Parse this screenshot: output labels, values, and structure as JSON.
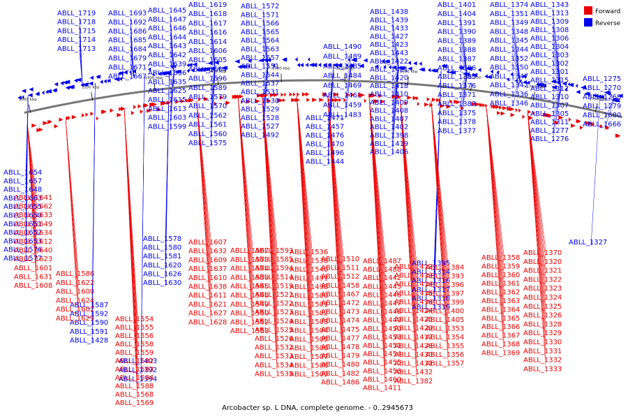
{
  "caption": "Arcobacter sp. L DNA, complete genome. - 0..2945673",
  "legend": [
    {
      "label": "Forward",
      "color": "#ee0000"
    },
    {
      "label": "Reverse",
      "color": "#0000ee"
    }
  ],
  "colors": {
    "forward": "#ee0000",
    "reverse": "#0000ee",
    "backbone": "#777777"
  },
  "ticks": [
    "1750 kbp",
    "1700 kbp",
    "1650 kbp",
    "1600 kbp",
    "1550 kbp",
    "1500 kbp",
    "1450 kbp",
    "1400 kbp",
    "1350 kbp",
    "1300 kbp"
  ],
  "labels_reverse": [
    "ABLL_1719",
    "ABLL_1718",
    "ABLL_1715",
    "ABLL_1714",
    "ABLL_1713",
    "ABLL_1693",
    "ABLL_1692",
    "ABLL_1686",
    "ABLL_1685",
    "ABLL_1684",
    "ABLL_1679",
    "ABLL_1671",
    "ABLL_1667",
    "ABLL_1645",
    "ABLL_1647",
    "ABLL_1646",
    "ABLL_1644",
    "ABLL_1643",
    "ABLL_1642",
    "ABLL_1639",
    "ABLL_1636",
    "ABLL_1635",
    "ABLL_1625",
    "ABLL_1615",
    "ABLL_1613",
    "ABLL_1603",
    "ABLL_1599",
    "ABLL_1619",
    "ABLL_1618",
    "ABLL_1617",
    "ABLL_1616",
    "ABLL_1614",
    "ABLL_1606",
    "ABLL_1605",
    "ABLL_1604",
    "ABLL_1596",
    "ABLL_1589",
    "ABLL_1579",
    "ABLL_1570",
    "ABLL_1562",
    "ABLL_1561",
    "ABLL_1560",
    "ABLL_1575",
    "ABLL_1572",
    "ABLL_1571",
    "ABLL_1566",
    "ABLL_1565",
    "ABLL_1564",
    "ABLL_1563",
    "ABLL_1557",
    "ABLL_1551",
    "ABLL_1544",
    "ABLL_1537",
    "ABLL_1531",
    "ABLL_1530",
    "ABLL_1529",
    "ABLL_1528",
    "ABLL_1527",
    "ABLL_1492",
    "ABLL_1490",
    "ABLL_1489",
    "ABLL_1485",
    "ABLL_1484",
    "ABLL_1469",
    "ABLL_1461",
    "ABLL_1459",
    "ABLL_1483",
    "ABLL_1471",
    "ABLL_1457",
    "ABLL_1476",
    "ABLL_1470",
    "ABLL_1496",
    "ABLL_1444",
    "ABLL_1438",
    "ABLL_1439",
    "ABLL_1433",
    "ABLL_1427",
    "ABLL_1423",
    "ABLL_1443",
    "ABLL_1422",
    "ABLL_1421",
    "ABLL_1420",
    "ABLL_1418",
    "ABLL_1410",
    "ABLL_1409",
    "ABLL_1408",
    "ABLL_1407",
    "ABLL_1402",
    "ABLL_1398",
    "ABLL_1419",
    "ABLL_1406",
    "ABLL_1401",
    "ABLL_1404",
    "ABLL_1391",
    "ABLL_1390",
    "ABLL_1389",
    "ABLL_1388",
    "ABLL_1387",
    "ABLL_1386",
    "ABLL_1385",
    "ABLL_1376",
    "ABLL_1371",
    "ABLL_1383",
    "ABLL_1375",
    "ABLL_1378",
    "ABLL_1377",
    "ABLL_1374",
    "ABLL_1351",
    "ABLL_1349",
    "ABLL_1348",
    "ABLL_1345",
    "ABLL_1344",
    "ABLL_1352",
    "ABLL_1350",
    "ABLL_1347",
    "ABLL_1342",
    "ABLL_1336",
    "ABLL_1346",
    "ABLL_1343",
    "ABLL_1313",
    "ABLL_1309",
    "ABLL_1308",
    "ABLL_1306",
    "ABLL_1304",
    "ABLL_1303",
    "ABLL_1302",
    "ABLL_1301",
    "ABLL_1315",
    "ABLL_1312",
    "ABLL_1310",
    "ABLL_1307",
    "ABLL_1305",
    "ABLL_1311",
    "ABLL_1277",
    "ABLL_1276",
    "ABLL_1275",
    "ABLL_1270",
    "ABLL_1268",
    "ABLL_1279",
    "ABLL_1680",
    "ABLL_1666",
    "ABLL_1654",
    "ABLL_1657",
    "ABLL_1648",
    "ABLL_1663",
    "ABLL_1655",
    "ABLL_1650",
    "ABLL_1651",
    "ABLL_1652",
    "ABLL_1653",
    "ABLL_1576",
    "ABLL_1577",
    "ABLL_1578",
    "ABLL_1580",
    "ABLL_1581",
    "ABLL_1620",
    "ABLL_1626",
    "ABLL_1630",
    "ABLL_1587",
    "ABLL_1592",
    "ABLL_1590",
    "ABLL_1591",
    "ABLL_1428",
    "ABLL_1403",
    "ABLL_1392",
    "ABLL_1394",
    "ABLL_1395",
    "ABLL_1314",
    "ABLL_1316",
    "ABLL_1317",
    "ABLL_1318",
    "ABLL_1319",
    "ABLL_1327"
  ],
  "labels_forward": [
    "ABLL_1641",
    "ABLL_1662",
    "ABLL_1633",
    "ABLL_1649",
    "ABLL_1634",
    "ABLL_1612",
    "ABLL_1640",
    "ABLL_1623",
    "ABLL_1601",
    "ABLL_1631",
    "ABLL_1608",
    "ABLL_1586",
    "ABLL_1622",
    "ABLL_1600",
    "ABLL_1624",
    "ABLL_1602",
    "ABLL_1629",
    "ABLL_1607",
    "ABLL_1632",
    "ABLL_1609",
    "ABLL_1637",
    "ABLL_1610",
    "ABLL_1638",
    "ABLL_1611",
    "ABLL_1621",
    "ABLL_1627",
    "ABLL_1628",
    "ABLL_1567",
    "ABLL_1573",
    "ABLL_1574",
    "ABLL_1539",
    "ABLL_1545",
    "ABLL_1548",
    "ABLL_1549",
    "ABLL_1550",
    "ABLL_1552",
    "ABLL_1553",
    "ABLL_1554",
    "ABLL_1555",
    "ABLL_1556",
    "ABLL_1558",
    "ABLL_1559",
    "ABLL_1582",
    "ABLL_1583",
    "ABLL_1584",
    "ABLL_1588",
    "ABLL_1568",
    "ABLL_1569",
    "ABLL_1593",
    "ABLL_1585",
    "ABLL_1594",
    "ABLL_1514",
    "ABLL_1519",
    "ABLL_1521",
    "ABLL_1522",
    "ABLL_1523",
    "ABLL_1524",
    "ABLL_1525",
    "ABLL_1526",
    "ABLL_1532",
    "ABLL_1533",
    "ABLL_1534",
    "ABLL_1535",
    "ABLL_1536",
    "ABLL_1538",
    "ABLL_1540",
    "ABLL_1491",
    "ABLL_1498",
    "ABLL_1500",
    "ABLL_1501",
    "ABLL_1502",
    "ABLL_1503",
    "ABLL_1504",
    "ABLL_1505",
    "ABLL_1506",
    "ABLL_1507",
    "ABLL_1508",
    "ABLL_1509",
    "ABLL_1510",
    "ABLL_1511",
    "ABLL_1512",
    "ABLL_1458",
    "ABLL_1467",
    "ABLL_1472",
    "ABLL_1473",
    "ABLL_1474",
    "ABLL_1475",
    "ABLL_1477",
    "ABLL_1478",
    "ABLL_1479",
    "ABLL_1480",
    "ABLL_1482",
    "ABLL_1486",
    "ABLL_1487",
    "ABLL_1488",
    "ABLL_1442",
    "ABLL_1445",
    "ABLL_1446",
    "ABLL_1447",
    "ABLL_1448",
    "ABLL_1449",
    "ABLL_1450",
    "ABLL_1453",
    "ABLL_1451",
    "ABLL_1454",
    "ABLL_1455",
    "ABLL_1456",
    "ABLL_1460",
    "ABLL_1411",
    "ABLL_1412",
    "ABLL_1413",
    "ABLL_1414",
    "ABLL_1415",
    "ABLL_1416",
    "ABLL_1424",
    "ABLL_1425",
    "ABLL_1429",
    "ABLL_1417",
    "ABLL_1426",
    "ABLL_1430",
    "ABLL_1431",
    "ABLL_1432",
    "ABLL_1382",
    "ABLL_1384",
    "ABLL_1393",
    "ABLL_1396",
    "ABLL_1397",
    "ABLL_1399",
    "ABLL_1400",
    "ABLL_1405",
    "ABLL_1353",
    "ABLL_1354",
    "ABLL_1355",
    "ABLL_1356",
    "ABLL_1357",
    "ABLL_1358",
    "ABLL_1359",
    "ABLL_1360",
    "ABLL_1361",
    "ABLL_1362",
    "ABLL_1363",
    "ABLL_1364",
    "ABLL_1365",
    "ABLL_1366",
    "ABLL_1367",
    "ABLL_1368",
    "ABLL_1369",
    "ABLL_1370",
    "ABLL_1320",
    "ABLL_1321",
    "ABLL_1322",
    "ABLL_1323",
    "ABLL_1324",
    "ABLL_1325",
    "ABLL_1326",
    "ABLL_1328",
    "ABLL_1329",
    "ABLL_1330",
    "ABLL_1331",
    "ABLL_1332",
    "ABLL_1333"
  ]
}
